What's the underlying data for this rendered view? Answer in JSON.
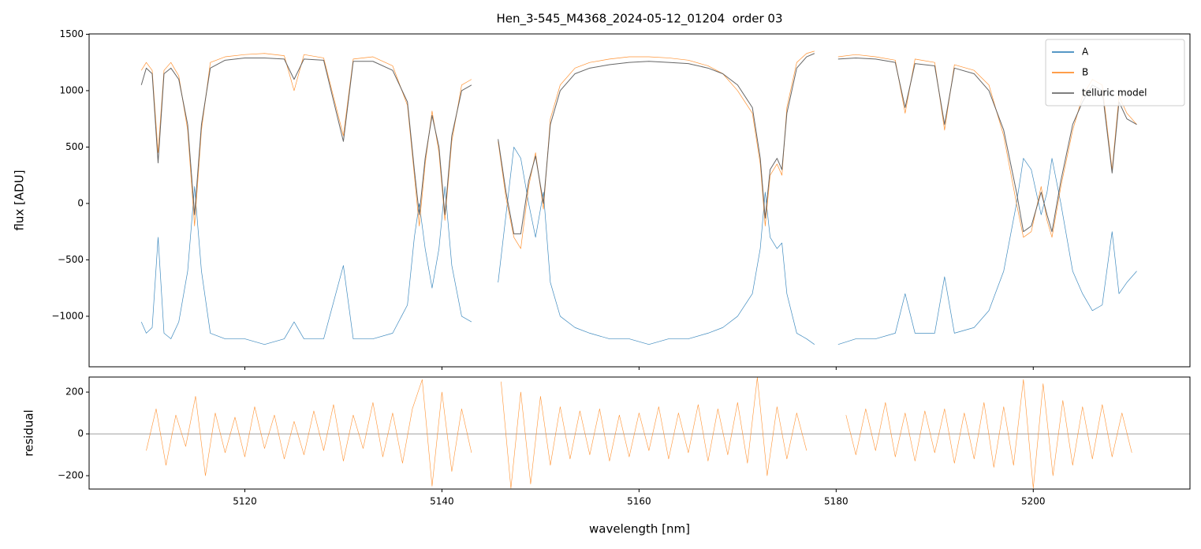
{
  "chart_data": [
    {
      "type": "line",
      "title": "Hen_3-545_M4368_2024-05-12_01204  order 03",
      "ylabel": "flux [ADU]",
      "xlim": [
        5104.2,
        5215.9
      ],
      "ylim": [
        -1448,
        1503
      ],
      "xticks": [
        5120,
        5140,
        5160,
        5180,
        5200
      ],
      "yticks": [
        {
          "value": -1000,
          "label": "−1000"
        },
        {
          "value": -500,
          "label": "−500"
        },
        0,
        500,
        1000,
        1500
      ],
      "legend": "upper right",
      "x": [
        5109.5,
        5110,
        5110.6,
        5111.2,
        5111.8,
        5112.5,
        5113.3,
        5114.2,
        5114.9,
        5115.6,
        5116.5,
        5118,
        5120,
        5122,
        5124,
        5125,
        5126,
        5128,
        5130,
        5131,
        5133,
        5135,
        5136.5,
        5137.2,
        5137.7,
        5138.3,
        5139,
        5139.7,
        5140.3,
        5141,
        5142,
        5143,
        5144,
        5145.7,
        5146.5,
        5147.3,
        5148,
        5148.8,
        5149.5,
        5150.3,
        5151,
        5152,
        5153.5,
        5155,
        5157,
        5159,
        5161,
        5163,
        5165,
        5167,
        5168.5,
        5170,
        5171.5,
        5172.3,
        5172.8,
        5173.3,
        5174,
        5174.5,
        5175,
        5176,
        5177,
        5177.8,
        5179,
        5180.2,
        5182,
        5184,
        5186,
        5187,
        5188,
        5190,
        5191,
        5192,
        5194,
        5195.5,
        5197,
        5198.3,
        5199,
        5199.8,
        5200.8,
        5201.4,
        5201.9,
        5202.8,
        5204,
        5205,
        5206,
        5207,
        5208,
        5208.7,
        5209.5,
        5210.5
      ],
      "series": [
        {
          "name": "A",
          "color": "#1f77b4",
          "values": [
            -1050,
            -1150,
            -1100,
            -300,
            -1150,
            -1200,
            -1050,
            -600,
            150,
            -600,
            -1150,
            -1200,
            -1200,
            -1250,
            -1200,
            -1050,
            -1200,
            -1200,
            -550,
            -1200,
            -1200,
            -1150,
            -900,
            -300,
            0,
            -400,
            -750,
            -400,
            150,
            -550,
            -1000,
            -1050,
            null,
            -700,
            -100,
            500,
            400,
            0,
            -300,
            100,
            -700,
            -1000,
            -1100,
            -1150,
            -1200,
            -1200,
            -1250,
            -1200,
            -1200,
            -1150,
            -1100,
            -1000,
            -800,
            -400,
            100,
            -300,
            -400,
            -350,
            -800,
            -1150,
            -1200,
            -1250,
            null,
            -1250,
            -1200,
            -1200,
            -1150,
            -800,
            -1150,
            -1150,
            -650,
            -1150,
            -1100,
            -950,
            -600,
            0,
            400,
            300,
            -100,
            100,
            400,
            0,
            -600,
            -800,
            -950,
            -900,
            -250,
            -800,
            -700,
            -600
          ]
        },
        {
          "name": "B",
          "color": "#ff7f0e",
          "values": [
            1180,
            1250,
            1180,
            450,
            1180,
            1250,
            1130,
            650,
            -200,
            650,
            1250,
            1300,
            1320,
            1330,
            1310,
            1000,
            1320,
            1290,
            600,
            1280,
            1300,
            1220,
            870,
            250,
            -200,
            350,
            820,
            450,
            -150,
            550,
            1050,
            1100,
            null,
            550,
            50,
            -300,
            -400,
            150,
            450,
            -50,
            750,
            1050,
            1200,
            1250,
            1280,
            1300,
            1300,
            1290,
            1270,
            1220,
            1150,
            1000,
            800,
            350,
            -200,
            250,
            350,
            250,
            850,
            1250,
            1330,
            1350,
            null,
            1300,
            1320,
            1300,
            1270,
            800,
            1280,
            1250,
            650,
            1230,
            1180,
            1050,
            600,
            0,
            -300,
            -250,
            150,
            -150,
            -300,
            150,
            650,
            950,
            1100,
            1050,
            300,
            950,
            800,
            700
          ]
        },
        {
          "name": "telluric model",
          "color": "#555555",
          "values": [
            1050,
            1200,
            1150,
            360,
            1150,
            1200,
            1100,
            700,
            -100,
            700,
            1200,
            1270,
            1290,
            1290,
            1280,
            1100,
            1280,
            1270,
            550,
            1260,
            1260,
            1180,
            900,
            300,
            -100,
            400,
            780,
            500,
            -100,
            600,
            1000,
            1050,
            null,
            570,
            100,
            -270,
            -270,
            200,
            420,
            0,
            700,
            1000,
            1150,
            1200,
            1230,
            1250,
            1260,
            1250,
            1240,
            1200,
            1150,
            1050,
            850,
            400,
            -130,
            300,
            400,
            300,
            800,
            1200,
            1300,
            1330,
            null,
            1280,
            1290,
            1280,
            1250,
            850,
            1240,
            1220,
            700,
            1200,
            1150,
            1000,
            650,
            100,
            -250,
            -200,
            100,
            -100,
            -250,
            200,
            700,
            900,
            1050,
            1000,
            270,
            900,
            750,
            700
          ]
        }
      ]
    },
    {
      "type": "line",
      "xlabel": "wavelength [nm]",
      "ylabel": "residual",
      "xlim": [
        5104.2,
        5215.9
      ],
      "ylim": [
        -264,
        272
      ],
      "xticks": [
        5120,
        5140,
        5160,
        5180,
        5200
      ],
      "yticks": [
        {
          "value": -200,
          "label": "−200"
        },
        0,
        200
      ],
      "hline": 0,
      "x": [
        5110,
        5111,
        5112,
        5113,
        5114,
        5115,
        5116,
        5117,
        5118,
        5119,
        5120,
        5121,
        5122,
        5123,
        5124,
        5125,
        5126,
        5127,
        5128,
        5129,
        5130,
        5131,
        5132,
        5133,
        5134,
        5135,
        5136,
        5137,
        5138,
        5139,
        5140,
        5141,
        5142,
        5143,
        5144.5,
        5146,
        5147,
        5148,
        5149,
        5150,
        5151,
        5152,
        5153,
        5154,
        5155,
        5156,
        5157,
        5158,
        5159,
        5160,
        5161,
        5162,
        5163,
        5164,
        5165,
        5166,
        5167,
        5168,
        5169,
        5170,
        5171,
        5172,
        5173,
        5174,
        5175,
        5176,
        5177,
        5179,
        5181,
        5182,
        5183,
        5184,
        5185,
        5186,
        5187,
        5188,
        5189,
        5190,
        5191,
        5192,
        5193,
        5194,
        5195,
        5196,
        5197,
        5198,
        5199,
        5200,
        5201,
        5202,
        5203,
        5204,
        5205,
        5206,
        5207,
        5208,
        5209,
        5210
      ],
      "series": [
        {
          "color": "#ff7f0e",
          "values": [
            -80,
            120,
            -150,
            90,
            -60,
            180,
            -200,
            100,
            -90,
            80,
            -110,
            130,
            -70,
            90,
            -120,
            60,
            -100,
            110,
            -80,
            140,
            -130,
            90,
            -70,
            150,
            -110,
            100,
            -140,
            120,
            260,
            -250,
            200,
            -180,
            120,
            -90,
            null,
            250,
            -260,
            200,
            -240,
            180,
            -150,
            130,
            -120,
            110,
            -100,
            120,
            -130,
            90,
            -110,
            100,
            -80,
            130,
            -120,
            100,
            -90,
            140,
            -130,
            120,
            -100,
            150,
            -140,
            270,
            -200,
            130,
            -120,
            100,
            -80,
            null,
            90,
            -100,
            120,
            -80,
            150,
            -110,
            100,
            -130,
            110,
            -90,
            120,
            -140,
            100,
            -120,
            150,
            -160,
            130,
            -150,
            260,
            -260,
            240,
            -200,
            160,
            -150,
            130,
            -120,
            140,
            -110,
            100,
            -90
          ]
        }
      ]
    }
  ]
}
